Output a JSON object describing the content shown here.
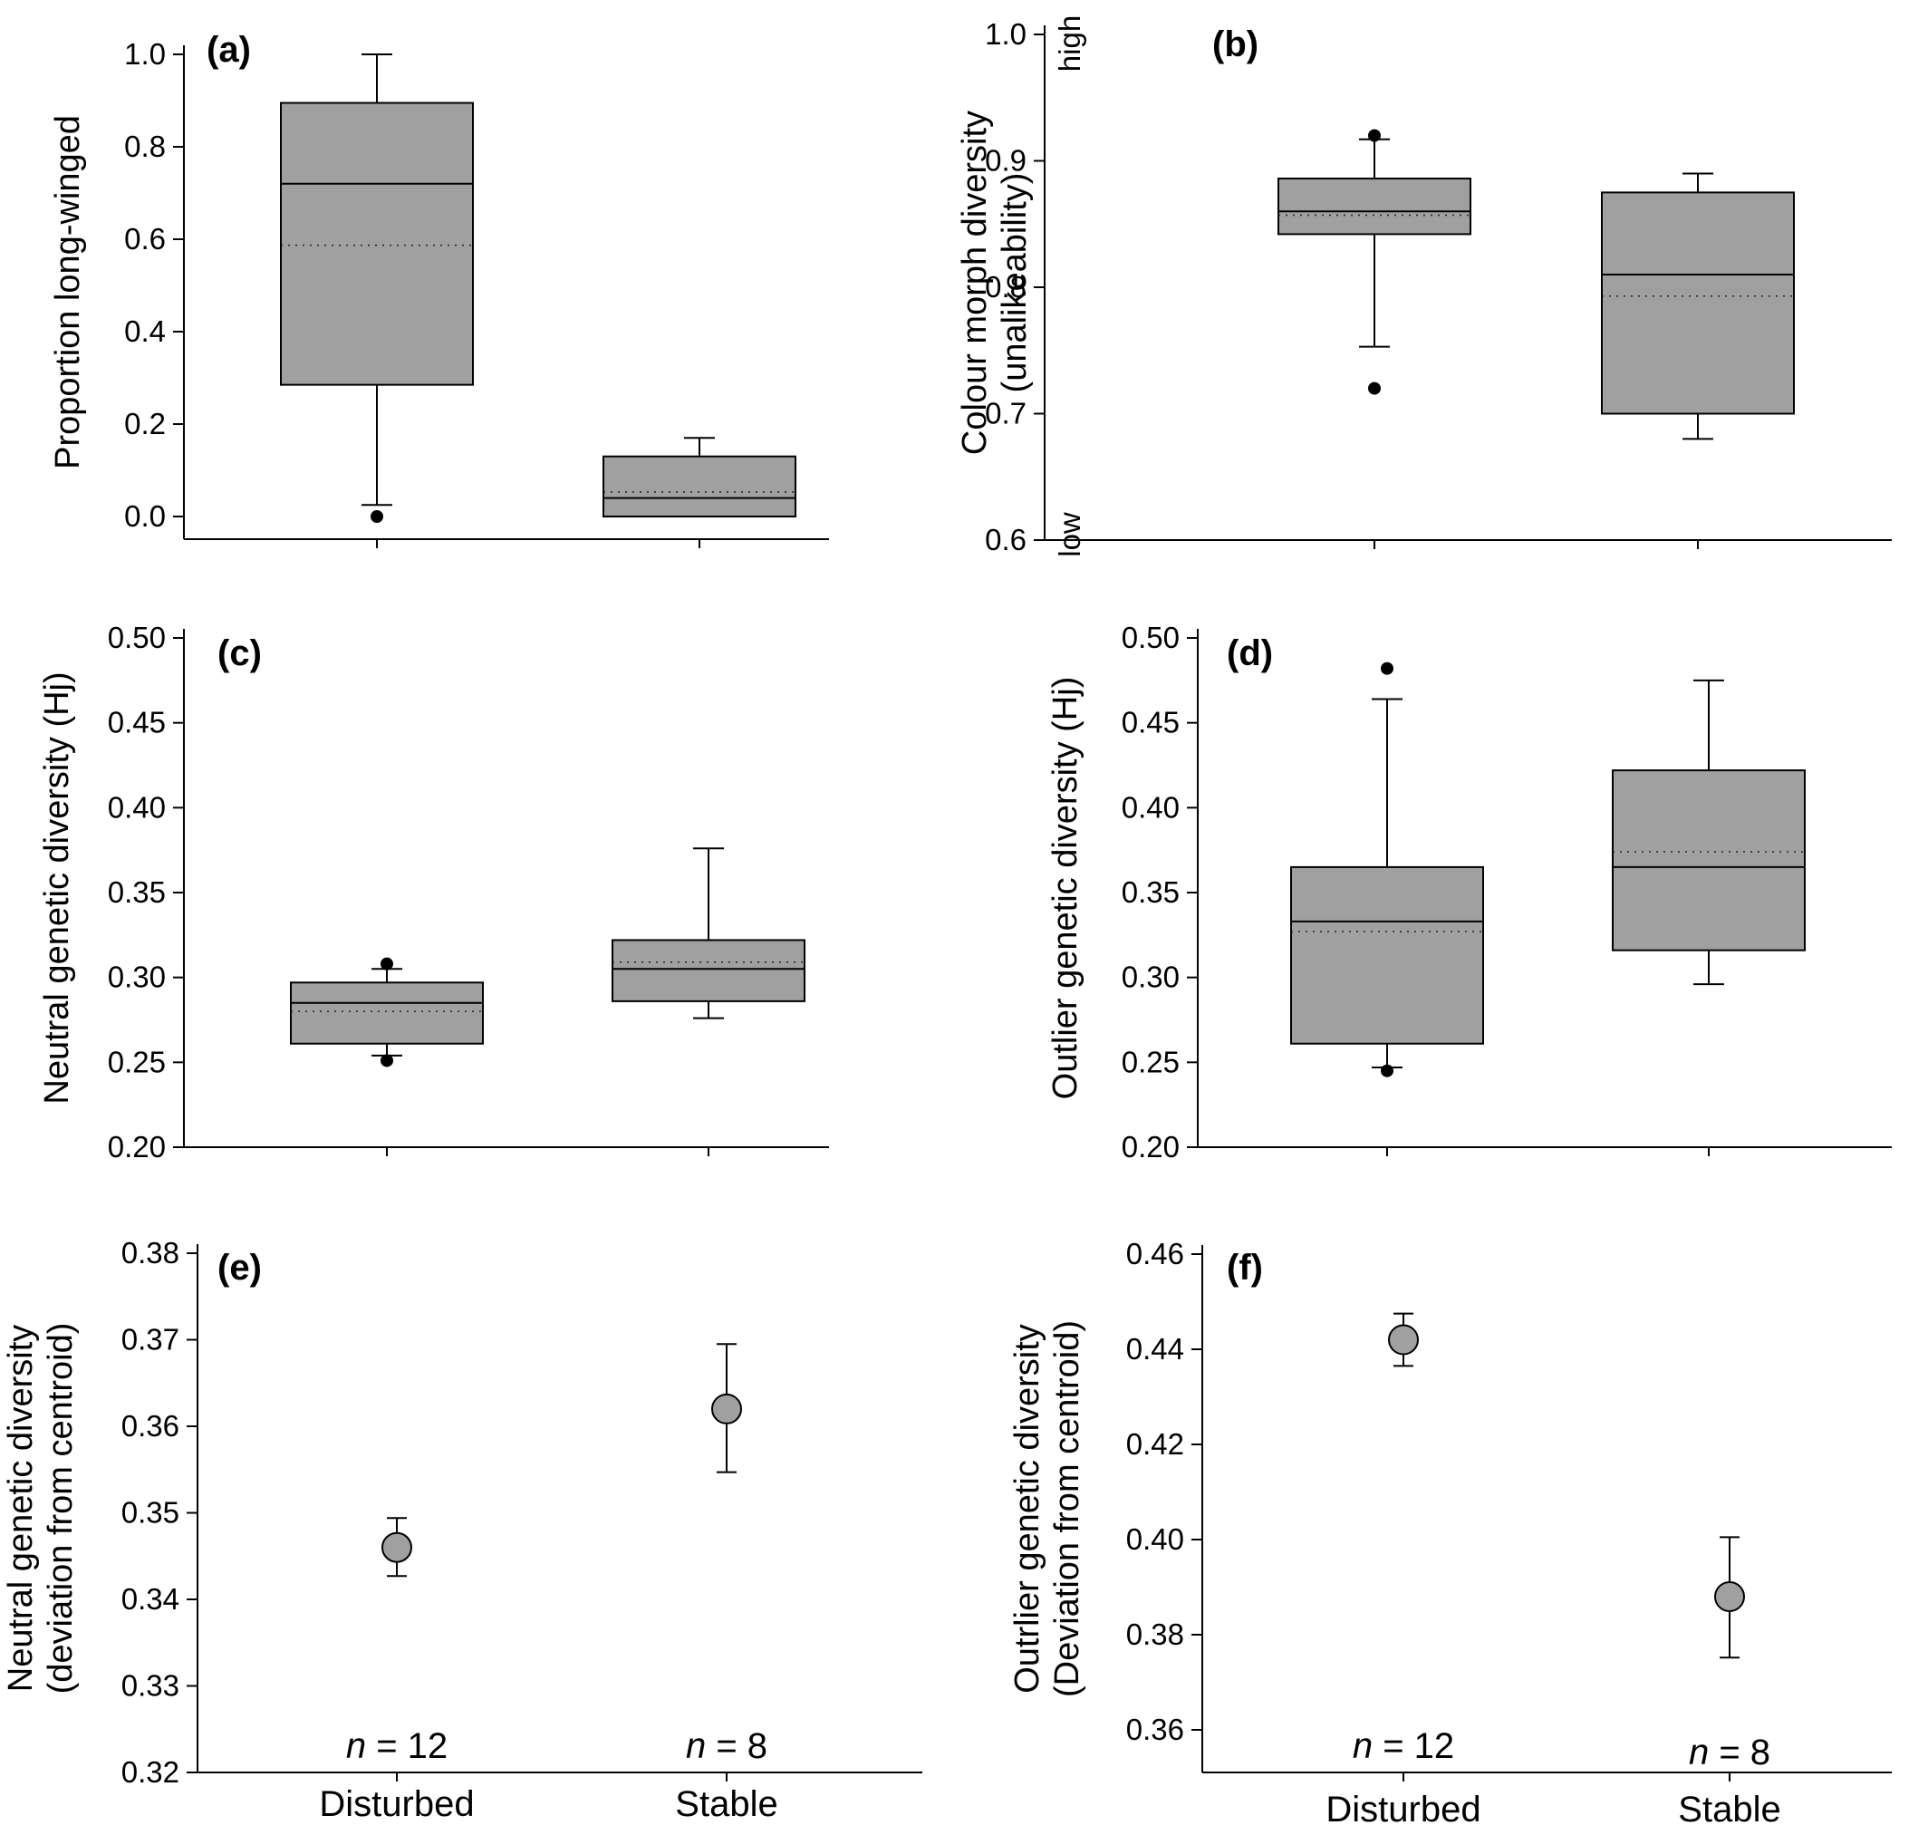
{
  "figure": {
    "panels": [
      {
        "id": "a",
        "label": "(a)",
        "ylabel": [
          "Proportion long-winged"
        ],
        "yticks": [
          "0.0",
          "0.2",
          "0.4",
          "0.6",
          "0.8",
          "1.0"
        ],
        "xticklabels": [],
        "n_labels": [],
        "side_high": "",
        "side_low": ""
      },
      {
        "id": "b",
        "label": "(b)",
        "ylabel": [
          "Colour morph diversity",
          "(unalikeability)"
        ],
        "yticks": [
          "0.6",
          "0.7",
          "0.8",
          "0.9",
          "1.0"
        ],
        "xticklabels": [],
        "n_labels": [],
        "side_high": "high",
        "side_low": "low"
      },
      {
        "id": "c",
        "label": "(c)",
        "ylabel": [
          "Neutral genetic diversity (Hj)"
        ],
        "yticks": [
          "0.20",
          "0.25",
          "0.30",
          "0.35",
          "0.40",
          "0.45",
          "0.50"
        ],
        "xticklabels": [],
        "n_labels": [],
        "side_high": "",
        "side_low": ""
      },
      {
        "id": "d",
        "label": "(d)",
        "ylabel": [
          "Outlier genetic diversity (Hj)"
        ],
        "yticks": [
          "0.20",
          "0.25",
          "0.30",
          "0.35",
          "0.40",
          "0.45",
          "0.50"
        ],
        "xticklabels": [],
        "n_labels": [],
        "side_high": "",
        "side_low": ""
      },
      {
        "id": "e",
        "label": "(e)",
        "ylabel": [
          "Neutral genetic diversity",
          "(deviation from centroid)"
        ],
        "yticks": [
          "0.32",
          "0.33",
          "0.34",
          "0.35",
          "0.36",
          "0.37",
          "0.38"
        ],
        "xticklabels": [
          "Disturbed",
          "Stable"
        ],
        "n_labels": [
          "n = 12",
          "n = 8"
        ],
        "side_high": "",
        "side_low": ""
      },
      {
        "id": "f",
        "label": "(f)",
        "ylabel": [
          "Outrlier genetic diversity",
          "(Deviation from centroid)"
        ],
        "yticks": [
          "0.36",
          "0.38",
          "0.40",
          "0.42",
          "0.44",
          "0.46"
        ],
        "xticklabels": [
          "Disturbed",
          "Stable"
        ],
        "n_labels": [
          "n = 12",
          "n = 8"
        ],
        "side_high": "",
        "side_low": ""
      }
    ]
  },
  "chart_data": [
    {
      "type": "box",
      "panel": "(a)",
      "ylabel": "Proportion long-winged",
      "ylim": [
        -0.05,
        1.0
      ],
      "categories": [
        "Disturbed",
        "Stable"
      ],
      "boxes": [
        {
          "whisker_low": 0.025,
          "q1": 0.285,
          "median": 0.72,
          "mean": 0.587,
          "q3": 0.895,
          "whisker_high": 1.0,
          "outliers": [
            0.0
          ]
        },
        {
          "whisker_low": 0.0,
          "q1": 0.0,
          "median": 0.04,
          "mean": 0.053,
          "q3": 0.13,
          "whisker_high": 0.17,
          "outliers": []
        }
      ]
    },
    {
      "type": "box",
      "panel": "(b)",
      "ylabel": "Colour morph diversity (unalikeability)",
      "ylim": [
        0.6,
        1.0
      ],
      "categories": [
        "Disturbed",
        "Stable"
      ],
      "boxes": [
        {
          "whisker_low": 0.753,
          "q1": 0.842,
          "median": 0.86,
          "mean": 0.857,
          "q3": 0.886,
          "whisker_high": 0.917,
          "outliers": [
            0.72,
            0.92
          ]
        },
        {
          "whisker_low": 0.68,
          "q1": 0.7,
          "median": 0.81,
          "mean": 0.793,
          "q3": 0.875,
          "whisker_high": 0.89,
          "outliers": []
        }
      ]
    },
    {
      "type": "box",
      "panel": "(c)",
      "ylabel": "Neutral genetic diversity (Hj)",
      "ylim": [
        0.2,
        0.5
      ],
      "categories": [
        "Disturbed",
        "Stable"
      ],
      "boxes": [
        {
          "whisker_low": 0.254,
          "q1": 0.261,
          "median": 0.285,
          "mean": 0.28,
          "q3": 0.297,
          "whisker_high": 0.305,
          "outliers": [
            0.251,
            0.308
          ]
        },
        {
          "whisker_low": 0.276,
          "q1": 0.286,
          "median": 0.305,
          "mean": 0.309,
          "q3": 0.322,
          "whisker_high": 0.376,
          "outliers": []
        }
      ]
    },
    {
      "type": "box",
      "panel": "(d)",
      "ylabel": "Outlier genetic diversity (Hj)",
      "ylim": [
        0.2,
        0.5
      ],
      "categories": [
        "Disturbed",
        "Stable"
      ],
      "boxes": [
        {
          "whisker_low": 0.247,
          "q1": 0.261,
          "median": 0.333,
          "mean": 0.327,
          "q3": 0.365,
          "whisker_high": 0.464,
          "outliers": [
            0.245,
            0.482
          ]
        },
        {
          "whisker_low": 0.296,
          "q1": 0.316,
          "median": 0.365,
          "mean": 0.374,
          "q3": 0.422,
          "whisker_high": 0.475,
          "outliers": []
        }
      ]
    },
    {
      "type": "scatter",
      "panel": "(e)",
      "ylabel": "Neutral genetic diversity (deviation from centroid)",
      "ylim": [
        0.32,
        0.38
      ],
      "categories": [
        "Disturbed",
        "Stable"
      ],
      "points": [
        {
          "category": "Disturbed",
          "y": 0.346,
          "err_low": 0.3427,
          "err_high": 0.3494
        },
        {
          "category": "Stable",
          "y": 0.362,
          "err_low": 0.3547,
          "err_high": 0.3695
        }
      ]
    },
    {
      "type": "scatter",
      "panel": "(f)",
      "ylabel": "Outrlier genetic diversity (Deviation from centroid)",
      "ylim": [
        0.35,
        0.46
      ],
      "categories": [
        "Disturbed",
        "Stable"
      ],
      "points": [
        {
          "category": "Disturbed",
          "y": 0.442,
          "err_low": 0.4365,
          "err_high": 0.4475
        },
        {
          "category": "Stable",
          "y": 0.388,
          "err_low": 0.3752,
          "err_high": 0.4005
        }
      ]
    }
  ]
}
